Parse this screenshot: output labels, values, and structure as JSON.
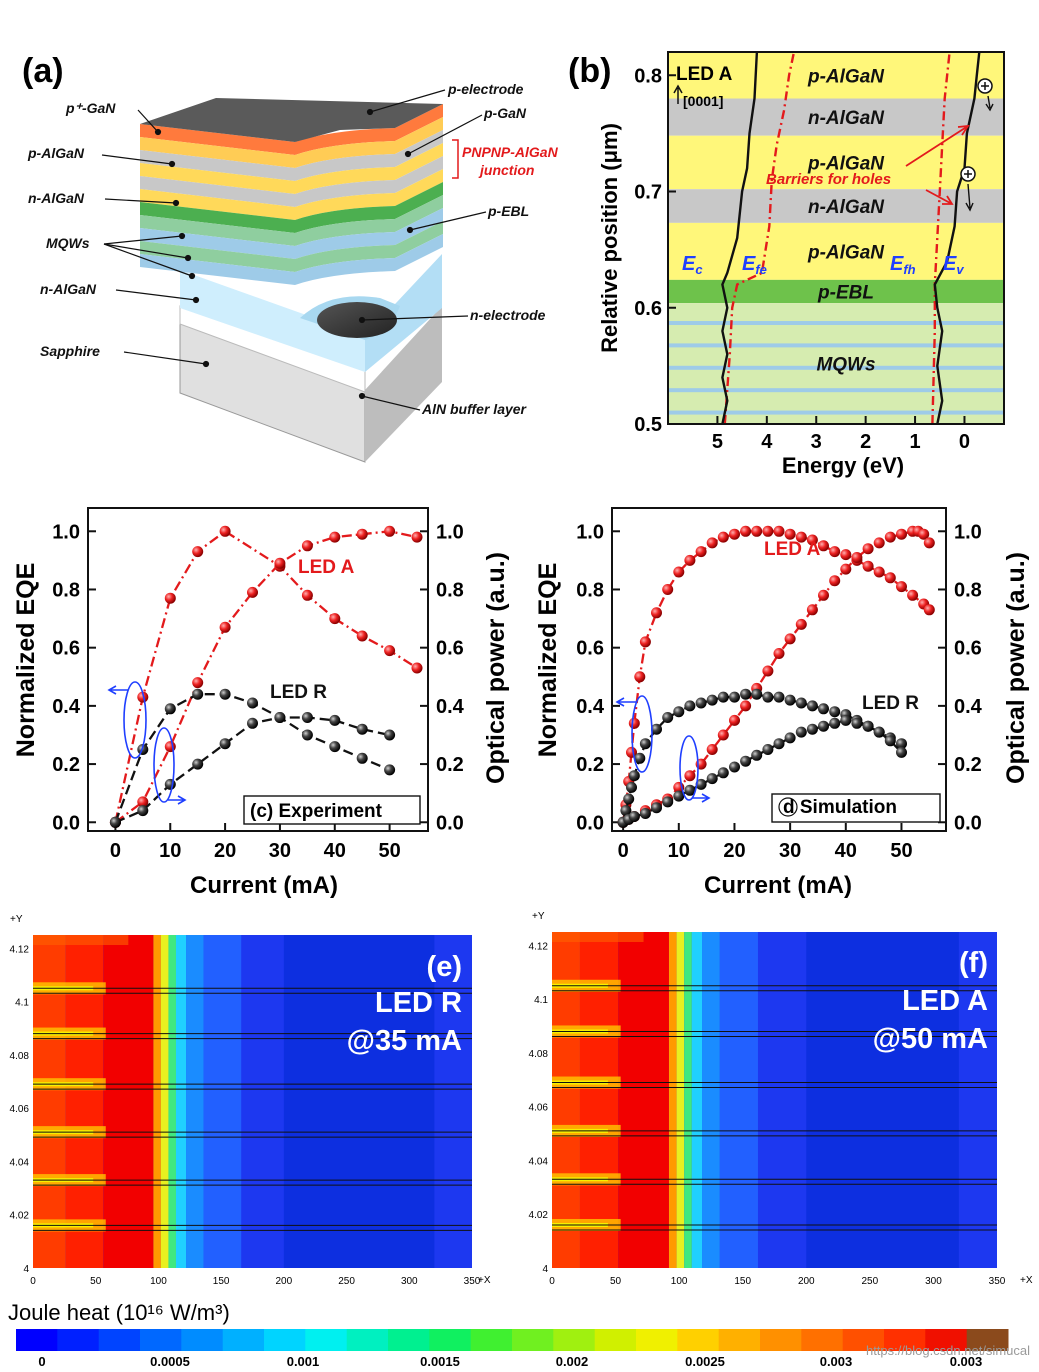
{
  "colors": {
    "red": "#e31a1c",
    "black": "#111111",
    "blue": "#1f3fff",
    "yellow": "#fff77a",
    "gray": "#c8c8c8",
    "green": "#6ec24b",
    "light_green": "#d6ecb0",
    "stripe_blue": "#9ecbe8"
  },
  "panel_a": {
    "tag": "(a)",
    "labels": {
      "p_electrode": "p-electrode",
      "pplus_gan": "p⁺-GaN",
      "p_gan": "p-GaN",
      "p_algan": "p-AlGaN",
      "junction_1": "PNPNP-AlGaN",
      "junction_2": "junction",
      "n_algan_top": "n-AlGaN",
      "p_ebl": "p-EBL",
      "mqws": "MQWs",
      "n_algan": "n-AlGaN",
      "n_electrode": "n-electrode",
      "sapphire": "Sapphire",
      "aln": "AlN buffer layer"
    },
    "layer_count": 11
  },
  "panel_b": {
    "tag": "(b)",
    "title": "LED A",
    "direction": "[0001]",
    "layers": [
      {
        "name": "p-AlGaN",
        "from": 0.78,
        "to": 0.82,
        "fill": "yellow"
      },
      {
        "name": "n-AlGaN",
        "from": 0.748,
        "to": 0.78,
        "fill": "gray"
      },
      {
        "name": "p-AlGaN",
        "from": 0.702,
        "to": 0.748,
        "fill": "yellow"
      },
      {
        "name": "n-AlGaN",
        "from": 0.673,
        "to": 0.702,
        "fill": "gray"
      },
      {
        "name": "p-AlGaN",
        "from": 0.624,
        "to": 0.673,
        "fill": "yellow"
      },
      {
        "name": "p-EBL",
        "from": 0.604,
        "to": 0.624,
        "fill": "green"
      },
      {
        "name": "MQWs",
        "from": 0.5,
        "to": 0.604,
        "fill": "light_green"
      }
    ],
    "barrier_note": "Barriers for holes",
    "band_labels": {
      "ec": "Ec",
      "efe": "Efe",
      "efh": "Efh",
      "ev": "Ev"
    },
    "xlabel": "Energy (eV)",
    "ylabel": "Relative position (μm)",
    "xticks": [
      5,
      4,
      3,
      2,
      1,
      0
    ],
    "yticks": [
      "0.5",
      "0.6",
      "0.7",
      "0.8"
    ],
    "xlim": [
      6.0,
      -0.8
    ],
    "ylim": [
      0.5,
      0.82
    ]
  },
  "chart_data": [
    {
      "type": "line",
      "title": "(c) Experiment",
      "xlabel": "Current (mA)",
      "ylabel": "Normalized EQE",
      "ylabel_right": "Optical power (a.u.)",
      "xlim": [
        -5,
        57
      ],
      "ylim": [
        -0.03,
        1.08
      ],
      "xticks": [
        0,
        10,
        20,
        30,
        40,
        50
      ],
      "yticks": [
        "0.0",
        "0.2",
        "0.4",
        "0.6",
        "0.8",
        "1.0"
      ],
      "series": [
        {
          "name": "LED A EQE",
          "style": "red",
          "label": "LED A",
          "x": [
            0,
            5,
            10,
            15,
            20,
            30,
            35,
            40,
            45,
            50,
            55
          ],
          "y": [
            0,
            0.43,
            0.77,
            0.93,
            1.0,
            0.88,
            0.78,
            0.7,
            0.64,
            0.59,
            0.53
          ]
        },
        {
          "name": "LED A Power",
          "style": "red",
          "x": [
            0,
            5,
            10,
            15,
            20,
            25,
            30,
            35,
            40,
            45,
            50,
            55
          ],
          "y": [
            0,
            0.07,
            0.26,
            0.48,
            0.67,
            0.79,
            0.89,
            0.95,
            0.98,
            0.99,
            1.0,
            0.98
          ]
        },
        {
          "name": "LED R EQE",
          "style": "black",
          "label": "LED R",
          "x": [
            0,
            5,
            10,
            15,
            20,
            25,
            30,
            35,
            40,
            45,
            50
          ],
          "y": [
            0,
            0.25,
            0.39,
            0.44,
            0.44,
            0.41,
            0.36,
            0.36,
            0.35,
            0.32,
            0.3
          ]
        },
        {
          "name": "LED R Power",
          "style": "black",
          "x": [
            0,
            5,
            10,
            15,
            20,
            25,
            30,
            35,
            40,
            45,
            50
          ],
          "y": [
            0,
            0.04,
            0.13,
            0.2,
            0.27,
            0.34,
            0.36,
            0.3,
            0.26,
            0.22,
            0.18
          ]
        }
      ]
    },
    {
      "type": "line",
      "title": "d Simulation",
      "xlabel": "Current (mA)",
      "ylabel": "Normalized EQE",
      "ylabel_right": "Optical power (a.u.)",
      "xlim": [
        -2,
        58
      ],
      "ylim": [
        -0.03,
        1.08
      ],
      "xticks": [
        0,
        10,
        20,
        30,
        40,
        50
      ],
      "yticks": [
        "0.0",
        "0.2",
        "0.4",
        "0.6",
        "0.8",
        "1.0"
      ],
      "series": [
        {
          "name": "LED A EQE",
          "style": "red",
          "label": "LED A",
          "x": [
            0,
            0.5,
            1,
            1.5,
            2,
            3,
            4,
            6,
            8,
            10,
            12,
            14,
            16,
            18,
            20,
            22,
            24,
            26,
            28,
            30,
            32,
            34,
            36,
            38,
            40,
            42,
            44,
            46,
            48,
            50,
            52,
            54,
            55
          ],
          "y": [
            0,
            0.06,
            0.14,
            0.24,
            0.34,
            0.5,
            0.62,
            0.72,
            0.8,
            0.86,
            0.9,
            0.93,
            0.96,
            0.98,
            0.99,
            1.0,
            1.0,
            1.0,
            1.0,
            0.99,
            0.98,
            0.97,
            0.95,
            0.93,
            0.92,
            0.9,
            0.88,
            0.86,
            0.84,
            0.81,
            0.78,
            0.75,
            0.73
          ]
        },
        {
          "name": "LED A Power",
          "style": "red",
          "x": [
            0,
            1,
            2,
            4,
            6,
            8,
            10,
            12,
            14,
            16,
            18,
            20,
            22,
            24,
            26,
            28,
            30,
            32,
            34,
            36,
            38,
            40,
            42,
            44,
            46,
            48,
            50,
            52,
            53,
            54,
            55
          ],
          "y": [
            0,
            0.01,
            0.02,
            0.04,
            0.06,
            0.08,
            0.12,
            0.16,
            0.2,
            0.25,
            0.3,
            0.35,
            0.4,
            0.46,
            0.52,
            0.58,
            0.63,
            0.68,
            0.73,
            0.78,
            0.83,
            0.87,
            0.91,
            0.94,
            0.96,
            0.98,
            0.99,
            1.0,
            1.0,
            0.99,
            0.96
          ]
        },
        {
          "name": "LED R EQE",
          "style": "black",
          "label": "LED R",
          "x": [
            0,
            0.5,
            1,
            1.5,
            2,
            3,
            4,
            6,
            8,
            10,
            12,
            14,
            16,
            18,
            20,
            22,
            24,
            26,
            28,
            30,
            32,
            34,
            36,
            38,
            40,
            42,
            44,
            46,
            48,
            50
          ],
          "y": [
            0,
            0.04,
            0.08,
            0.12,
            0.16,
            0.22,
            0.27,
            0.32,
            0.36,
            0.38,
            0.4,
            0.41,
            0.42,
            0.43,
            0.43,
            0.44,
            0.44,
            0.43,
            0.43,
            0.42,
            0.41,
            0.4,
            0.39,
            0.38,
            0.37,
            0.35,
            0.33,
            0.31,
            0.29,
            0.27
          ]
        },
        {
          "name": "LED R Power",
          "style": "black",
          "x": [
            0,
            1,
            2,
            4,
            6,
            8,
            10,
            12,
            14,
            16,
            18,
            20,
            22,
            24,
            26,
            28,
            30,
            32,
            34,
            36,
            38,
            40,
            42,
            44,
            46,
            48,
            50
          ],
          "y": [
            0,
            0.01,
            0.02,
            0.03,
            0.05,
            0.07,
            0.09,
            0.11,
            0.13,
            0.15,
            0.17,
            0.19,
            0.21,
            0.23,
            0.25,
            0.27,
            0.29,
            0.31,
            0.32,
            0.33,
            0.34,
            0.35,
            0.34,
            0.33,
            0.31,
            0.28,
            0.24
          ]
        }
      ]
    }
  ],
  "panel_e": {
    "tag": "(e)",
    "device": "LED R",
    "current": "@35 mA",
    "hot_edge": 96
  },
  "panel_f": {
    "tag": "(f)",
    "device": "LED A",
    "current": "@50 mA",
    "hot_edge": 92
  },
  "heatmap_axes": {
    "ylabel": "+Y",
    "xlabel": "+X",
    "xticks": [
      "0",
      "50",
      "100",
      "150",
      "200",
      "250",
      "300",
      "350"
    ],
    "yticks": [
      "4.12",
      "4.1",
      "4.08",
      "4.06",
      "4.04",
      "4.02",
      "4"
    ],
    "xlim": [
      0,
      350
    ],
    "ylim": [
      4,
      4.125
    ],
    "lines": [
      4.016,
      4.033,
      4.051,
      4.069,
      4.088,
      4.105
    ]
  },
  "colorbar": {
    "title": "Joule heat (10¹⁶ W/m³)",
    "ticks": [
      "0",
      "0.0005",
      "0.001",
      "0.0015",
      "0.002",
      "0.0025",
      "0.003",
      "0.003"
    ],
    "watermark": "https://blog.csdn.net/simucal"
  }
}
